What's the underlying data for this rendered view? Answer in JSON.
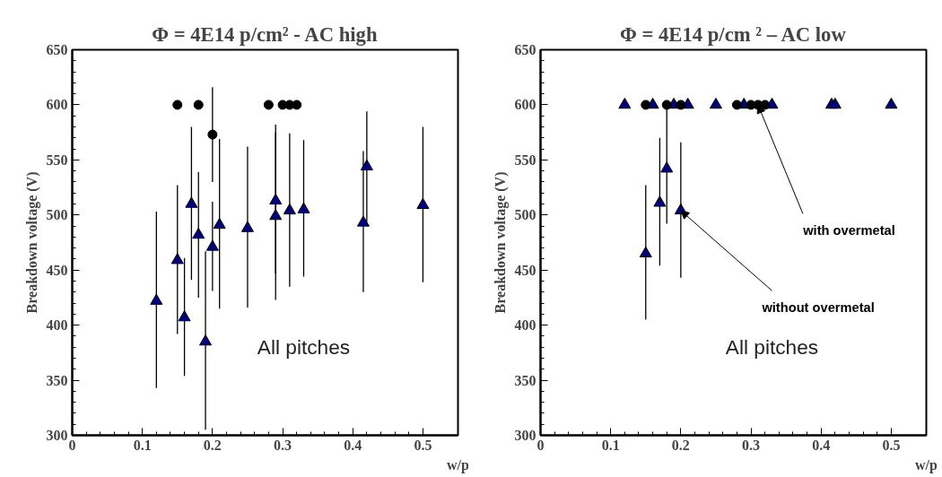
{
  "chart_data": [
    {
      "type": "scatter",
      "title": "Φ = 4E14 p/cm² - AC high",
      "xlabel": "w/p",
      "ylabel": "Breakdown voltage (V)",
      "xlim": [
        0,
        0.55
      ],
      "ylim": [
        300,
        650
      ],
      "xticks": [
        0,
        0.1,
        0.2,
        0.3,
        0.4,
        0.5
      ],
      "yticks": [
        300,
        350,
        400,
        450,
        500,
        550,
        600,
        650
      ],
      "series": [
        {
          "color": "#000080",
          "marker": "triangle",
          "x": [
            0.12,
            0.15,
            0.16,
            0.17,
            0.18,
            0.19,
            0.2,
            0.21,
            0.25,
            0.29,
            0.29,
            0.31,
            0.33,
            0.415,
            0.42,
            0.5
          ],
          "values": [
            422,
            459,
            407,
            510,
            482,
            385,
            471,
            491,
            488,
            513,
            499,
            504,
            505,
            493,
            544,
            509
          ],
          "errors": [
            [
              343,
              503
            ],
            [
              392,
              527
            ],
            [
              354,
              461
            ],
            [
              441,
              580
            ],
            [
              425,
              539
            ],
            [
              305,
              467
            ],
            [
              431,
              512
            ],
            [
              415,
              569
            ],
            [
              416,
              562
            ],
            [
              447,
              582
            ],
            [
              423,
              575
            ],
            [
              435,
              574
            ],
            [
              444,
              568
            ],
            [
              430,
              558
            ],
            [
              494,
              594
            ],
            [
              439,
              580
            ]
          ]
        },
        {
          "color": "#000000",
          "marker": "circle",
          "x": [
            0.15,
            0.18,
            0.2,
            0.28,
            0.3,
            0.31,
            0.32
          ],
          "values": [
            600,
            600,
            573,
            600,
            600,
            600,
            600
          ],
          "errors": [
            null,
            null,
            [
              530,
              616
            ],
            null,
            null,
            null,
            null
          ]
        }
      ],
      "annotations": [
        "All pitches"
      ]
    },
    {
      "type": "scatter",
      "title": "Φ = 4E14 p/cm ² – AC low",
      "xlabel": "w/p",
      "ylabel": "Breakdown voltage (V)",
      "xlim": [
        0,
        0.55
      ],
      "ylim": [
        300,
        650
      ],
      "xticks": [
        0,
        0.1,
        0.2,
        0.3,
        0.4,
        0.5
      ],
      "yticks": [
        300,
        350,
        400,
        450,
        500,
        550,
        600,
        650
      ],
      "series": [
        {
          "color": "#000080",
          "marker": "triangle",
          "x": [
            0.12,
            0.16,
            0.19,
            0.21,
            0.25,
            0.29,
            0.33,
            0.415,
            0.42,
            0.5,
            0.15,
            0.17,
            0.18,
            0.2
          ],
          "values": [
            600,
            600,
            600,
            600,
            600,
            600,
            600,
            600,
            600,
            600,
            465,
            511,
            542,
            504
          ],
          "errors": [
            null,
            null,
            null,
            null,
            null,
            null,
            null,
            null,
            null,
            null,
            [
              405,
              527
            ],
            [
              454,
              570
            ],
            [
              492,
              598
            ],
            [
              443,
              566
            ]
          ]
        },
        {
          "color": "#000000",
          "marker": "circle",
          "x": [
            0.15,
            0.18,
            0.2,
            0.28,
            0.3,
            0.31,
            0.32
          ],
          "values": [
            600,
            600,
            600,
            600,
            600,
            600,
            600
          ]
        }
      ],
      "annotations": [
        "All pitches",
        {
          "text": "with overmetal",
          "x": 0.31,
          "y": 600
        },
        {
          "text": "without overmetal",
          "x": 0.2,
          "y": 504
        }
      ]
    }
  ]
}
